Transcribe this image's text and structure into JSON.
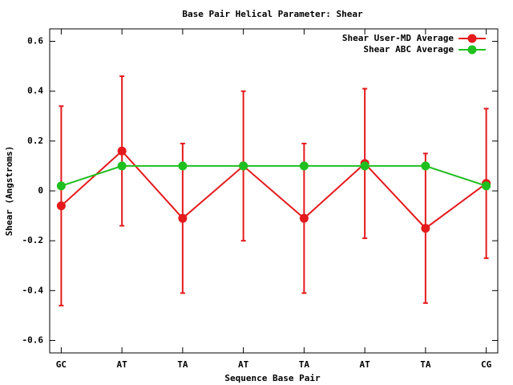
{
  "chart_data": {
    "type": "line",
    "title": "Base Pair Helical Parameter: Shear",
    "x_label": "Sequence Base Pair",
    "y_label": "Shear (Angstroms)",
    "categories": [
      "GC",
      "AT",
      "TA",
      "AT",
      "TA",
      "AT",
      "TA",
      "CG"
    ],
    "series": [
      {
        "name": "Shear User-MD Average",
        "color": "#e41a1c",
        "values": [
          -0.06,
          0.16,
          -0.11,
          0.1,
          -0.11,
          0.11,
          -0.15,
          0.03
        ],
        "errors": [
          0.4,
          0.3,
          0.3,
          0.3,
          0.3,
          0.3,
          0.3,
          0.3
        ]
      },
      {
        "name": "Shear ABC Average",
        "color": "#1fbf1f",
        "values": [
          0.02,
          0.1,
          0.1,
          0.1,
          0.1,
          0.1,
          0.1,
          0.02
        ]
      }
    ],
    "ylim": [
      -0.65,
      0.65
    ],
    "yticks": [
      -0.6,
      -0.4,
      -0.2,
      0,
      0.2,
      0.4,
      0.6
    ],
    "legend": "top-right"
  }
}
